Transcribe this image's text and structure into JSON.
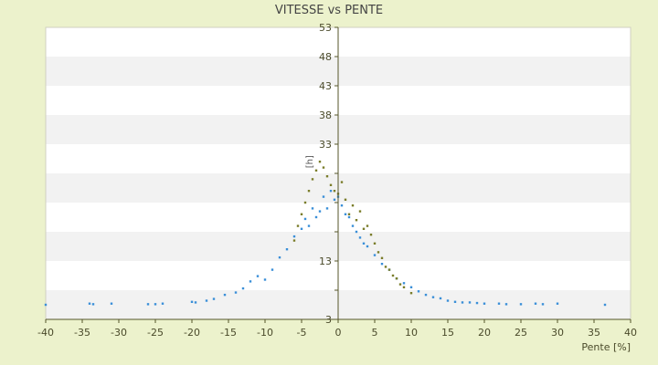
{
  "chart_data": {
    "type": "scatter",
    "title": "VITESSE vs PENTE",
    "xlabel": "Pente [%]",
    "ylabel": "[h]",
    "xlim": [
      -40,
      40
    ],
    "ylim": [
      3,
      53
    ],
    "x_ticks": [
      -40,
      -35,
      -30,
      -25,
      -20,
      -15,
      -10,
      -5,
      0,
      5,
      10,
      15,
      20,
      25,
      30,
      35,
      40
    ],
    "y_ticks": [
      3,
      8,
      13,
      18,
      23,
      28,
      33,
      38,
      43,
      48,
      53
    ],
    "y_tick_labels": [
      "3",
      "",
      "13",
      "",
      "",
      "",
      "33",
      "38",
      "43",
      "48",
      "53"
    ],
    "grid": "alternating horizontal bands",
    "colors": {
      "background": "#ecf2cc",
      "plot_area": "#ffffff",
      "band": "#f2f2f2",
      "series_blue": "#3a8fd8",
      "series_olive": "#7a7d2a",
      "axis": "#55552a"
    },
    "series": [
      {
        "color": "#3a8fd8",
        "points": [
          [
            -40,
            5.5
          ],
          [
            -34,
            5.7
          ],
          [
            -33.5,
            5.6
          ],
          [
            -31,
            5.7
          ],
          [
            -26,
            5.6
          ],
          [
            -25,
            5.6
          ],
          [
            -24,
            5.7
          ],
          [
            -20,
            6.0
          ],
          [
            -19.5,
            5.9
          ],
          [
            -18,
            6.2
          ],
          [
            -17,
            6.5
          ],
          [
            -15.5,
            7.2
          ],
          [
            -14,
            7.6
          ],
          [
            -13,
            8.3
          ],
          [
            -12,
            9.5
          ],
          [
            -11,
            10.4
          ],
          [
            -10,
            9.8
          ],
          [
            -9,
            11.5
          ],
          [
            -8,
            13.6
          ],
          [
            -7,
            15.0
          ],
          [
            -6,
            17.2
          ],
          [
            -5,
            18.5
          ],
          [
            -4.5,
            20.2
          ],
          [
            -4,
            19.0
          ],
          [
            -3.5,
            22.0
          ],
          [
            -3,
            20.5
          ],
          [
            -2.5,
            21.5
          ],
          [
            -2,
            24.0
          ],
          [
            -1.5,
            22.0
          ],
          [
            -1,
            25.0
          ],
          [
            -0.5,
            23.5
          ],
          [
            0,
            24.0
          ],
          [
            0.5,
            22.5
          ],
          [
            1,
            21.0
          ],
          [
            1.5,
            20.5
          ],
          [
            2,
            19.0
          ],
          [
            2.5,
            18.0
          ],
          [
            3,
            17.0
          ],
          [
            3.5,
            16.0
          ],
          [
            4,
            15.5
          ],
          [
            5,
            14.0
          ],
          [
            6,
            12.5
          ],
          [
            7,
            11.5
          ],
          [
            8,
            10.0
          ],
          [
            9,
            9.2
          ],
          [
            10,
            8.5
          ],
          [
            11,
            7.8
          ],
          [
            12,
            7.2
          ],
          [
            13,
            6.8
          ],
          [
            14,
            6.6
          ],
          [
            15,
            6.2
          ],
          [
            16,
            6.0
          ],
          [
            17,
            5.9
          ],
          [
            18,
            5.9
          ],
          [
            19,
            5.8
          ],
          [
            20,
            5.7
          ],
          [
            22,
            5.7
          ],
          [
            23,
            5.6
          ],
          [
            25,
            5.6
          ],
          [
            27,
            5.7
          ],
          [
            28,
            5.6
          ],
          [
            30,
            5.7
          ],
          [
            36.5,
            5.5
          ]
        ]
      },
      {
        "color": "#7a7d2a",
        "points": [
          [
            -6,
            16.5
          ],
          [
            -5.5,
            19.0
          ],
          [
            -5,
            21.0
          ],
          [
            -4.5,
            23.0
          ],
          [
            -4,
            25.0
          ],
          [
            -3.5,
            27.0
          ],
          [
            -3,
            28.5
          ],
          [
            -2.5,
            30.0
          ],
          [
            -2,
            29.0
          ],
          [
            -1.5,
            27.5
          ],
          [
            -1,
            26.0
          ],
          [
            -0.5,
            25.0
          ],
          [
            0,
            24.5
          ],
          [
            0.5,
            26.5
          ],
          [
            1,
            23.5
          ],
          [
            1.5,
            21.0
          ],
          [
            2,
            22.5
          ],
          [
            2.5,
            20.0
          ],
          [
            3,
            21.5
          ],
          [
            3.5,
            18.5
          ],
          [
            4,
            19.0
          ],
          [
            4.5,
            17.5
          ],
          [
            5,
            16.0
          ],
          [
            5.5,
            14.5
          ],
          [
            6,
            13.5
          ],
          [
            6.5,
            12.0
          ],
          [
            7,
            11.5
          ],
          [
            7.5,
            10.5
          ],
          [
            8,
            10.0
          ],
          [
            8.5,
            9.0
          ],
          [
            9,
            8.5
          ],
          [
            10,
            7.5
          ]
        ]
      }
    ]
  }
}
